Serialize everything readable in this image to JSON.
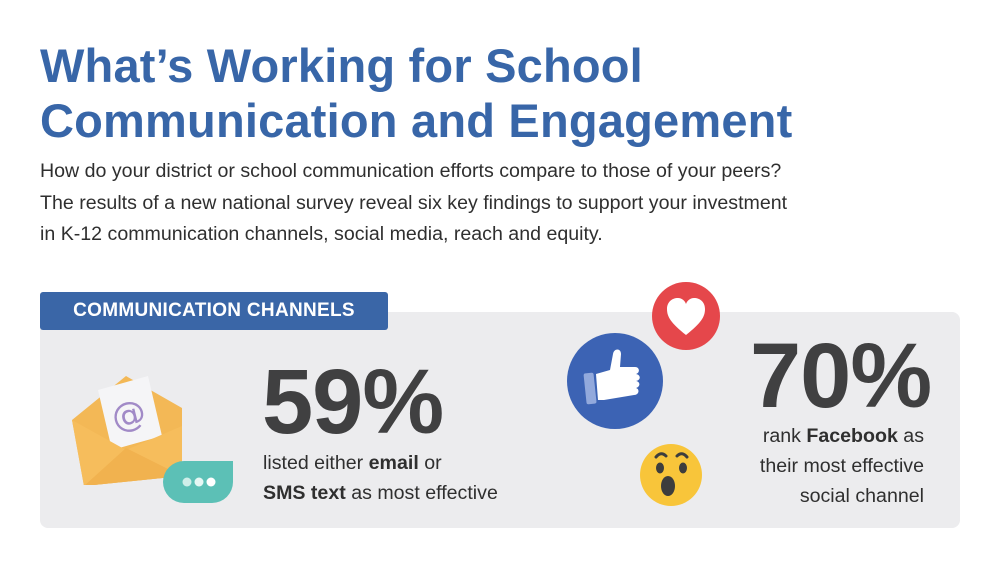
{
  "title": {
    "line1": "What’s Working for School",
    "line2": "Communication and Engagement"
  },
  "intro": {
    "line1": "How do your district or school communication efforts compare to those of your peers?",
    "line2": "The results of a new national survey reveal six key findings to support your investment",
    "line3": "in K-12 communication channels, social media, reach and equity."
  },
  "section": {
    "label": "COMMUNICATION CHANNELS",
    "accent_color": "#3a66a7"
  },
  "stat_email": {
    "value": "59%",
    "line1_pre": "listed either ",
    "line1_bold": "email",
    "line1_post": " or",
    "line2_bold": "SMS text",
    "line2_post": " as most effective",
    "icons": [
      "envelope-at-icon",
      "chat-bubble-icon"
    ]
  },
  "stat_facebook": {
    "value": "70%",
    "line1_pre": "rank ",
    "line1_bold": "Facebook",
    "line1_post": " as",
    "line2": "their most effective",
    "line3": "social channel",
    "icons": [
      "thumbs-up-icon",
      "heart-icon",
      "wow-face-icon"
    ]
  }
}
